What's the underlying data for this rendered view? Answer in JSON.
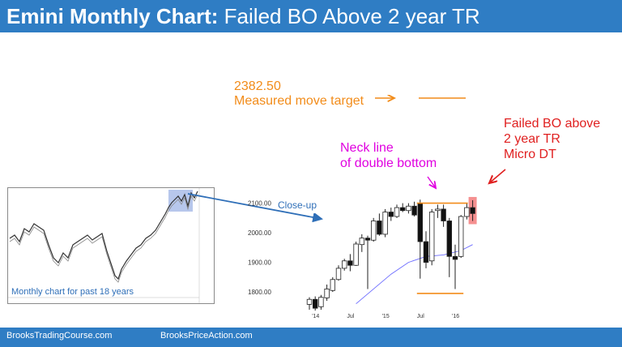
{
  "header": {
    "title_bold": "Emini Monthly Chart:",
    "title_rest": "Failed BO Above 2 year TR"
  },
  "annotations": {
    "target_value": "2382.50",
    "target_label": "Measured move target",
    "neck_line_1": "Neck line",
    "neck_line_2": "of double bottom",
    "failed_bo_1": "Failed BO above",
    "failed_bo_2": "2 year TR",
    "failed_bo_3": "Micro DT",
    "close_up": "Close-up"
  },
  "thumbnail": {
    "caption": "Monthly chart for past 18 years"
  },
  "footer": {
    "left": "BrooksTradingCourse.com",
    "right": "BrooksPriceAction.com"
  },
  "colors": {
    "header_bg": "#2f7dc4",
    "orange": "#f28c1a",
    "magenta": "#e000e0",
    "red": "#e02020",
    "ma_line": "#6a6aff",
    "arrow_blue": "#2f6fb8"
  },
  "chart_data": {
    "type": "candlestick",
    "title": "",
    "y_ticks": [
      "2100.00",
      "2000.00",
      "1900.00",
      "1800.00"
    ],
    "y_tick_values": [
      2100,
      2000,
      1900,
      1800
    ],
    "x_ticks": [
      "'14",
      "Jul",
      "'15",
      "Jul",
      "'16"
    ],
    "x_tick_index": [
      1,
      7,
      13,
      19,
      25
    ],
    "ylim": [
      1740,
      2140
    ],
    "candles": [
      {
        "o": 1758,
        "h": 1782,
        "l": 1740,
        "c": 1775
      },
      {
        "o": 1775,
        "h": 1785,
        "l": 1737,
        "c": 1745
      },
      {
        "o": 1750,
        "h": 1790,
        "l": 1740,
        "c": 1782
      },
      {
        "o": 1780,
        "h": 1825,
        "l": 1770,
        "c": 1810
      },
      {
        "o": 1805,
        "h": 1850,
        "l": 1800,
        "c": 1842
      },
      {
        "o": 1842,
        "h": 1890,
        "l": 1838,
        "c": 1880
      },
      {
        "o": 1880,
        "h": 1912,
        "l": 1872,
        "c": 1905
      },
      {
        "o": 1905,
        "h": 1928,
        "l": 1870,
        "c": 1890
      },
      {
        "o": 1890,
        "h": 1970,
        "l": 1888,
        "c": 1962
      },
      {
        "o": 1960,
        "h": 1995,
        "l": 1935,
        "c": 1982
      },
      {
        "o": 1982,
        "h": 1990,
        "l": 1810,
        "c": 1975
      },
      {
        "o": 1975,
        "h": 2050,
        "l": 1970,
        "c": 2040
      },
      {
        "o": 2040,
        "h": 2065,
        "l": 1990,
        "c": 1995
      },
      {
        "o": 1995,
        "h": 2080,
        "l": 1985,
        "c": 2070
      },
      {
        "o": 2070,
        "h": 2085,
        "l": 2040,
        "c": 2055
      },
      {
        "o": 2055,
        "h": 2095,
        "l": 2050,
        "c": 2085
      },
      {
        "o": 2085,
        "h": 2100,
        "l": 2070,
        "c": 2075
      },
      {
        "o": 2075,
        "h": 2100,
        "l": 2065,
        "c": 2090
      },
      {
        "o": 2090,
        "h": 2105,
        "l": 2055,
        "c": 2060
      },
      {
        "o": 2100,
        "h": 2112,
        "l": 1845,
        "c": 1970
      },
      {
        "o": 1970,
        "h": 2005,
        "l": 1880,
        "c": 1900
      },
      {
        "o": 1905,
        "h": 2080,
        "l": 1890,
        "c": 2070
      },
      {
        "o": 2075,
        "h": 2095,
        "l": 2050,
        "c": 2080
      },
      {
        "o": 2080,
        "h": 2095,
        "l": 2020,
        "c": 2040
      },
      {
        "o": 2040,
        "h": 2050,
        "l": 1850,
        "c": 1920
      },
      {
        "o": 1920,
        "h": 1960,
        "l": 1810,
        "c": 1910
      },
      {
        "o": 1920,
        "h": 2060,
        "l": 1915,
        "c": 2055
      },
      {
        "o": 2055,
        "h": 2100,
        "l": 2045,
        "c": 2085
      },
      {
        "o": 2085,
        "h": 2110,
        "l": 2040,
        "c": 2065
      }
    ],
    "moving_average": [
      {
        "i": 8,
        "v": 1760
      },
      {
        "i": 11,
        "v": 1810
      },
      {
        "i": 14,
        "v": 1860
      },
      {
        "i": 17,
        "v": 1900
      },
      {
        "i": 20,
        "v": 1920
      },
      {
        "i": 23,
        "v": 1925
      },
      {
        "i": 26,
        "v": 1940
      },
      {
        "i": 28,
        "v": 1960
      }
    ],
    "tr_top": 2100,
    "tr_bottom": 1795,
    "target": 2382.5,
    "highlight_candle_index": 28
  }
}
